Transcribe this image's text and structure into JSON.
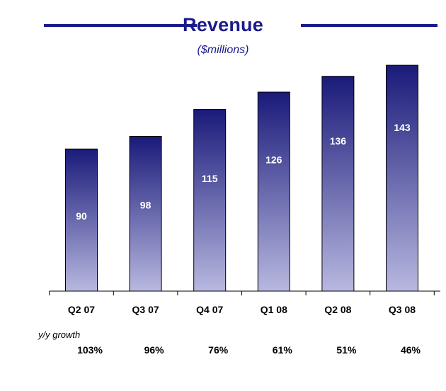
{
  "chart_data": {
    "type": "bar",
    "title": "Revenue",
    "subtitle": "($millions)",
    "categories": [
      "Q2 07",
      "Q3 07",
      "Q4 07",
      "Q1 08",
      "Q2 08",
      "Q3 08"
    ],
    "values": [
      90,
      98,
      115,
      126,
      136,
      143
    ],
    "ylim": [
      0,
      150
    ],
    "grid": false,
    "bar_color_top": "#1a1a7a",
    "bar_color_bottom": "#b8b8e0",
    "accent_color": "#1a1a8c"
  },
  "growth": {
    "label": "y/y growth",
    "values": [
      "103%",
      "96%",
      "76%",
      "61%",
      "51%",
      "46%"
    ]
  }
}
